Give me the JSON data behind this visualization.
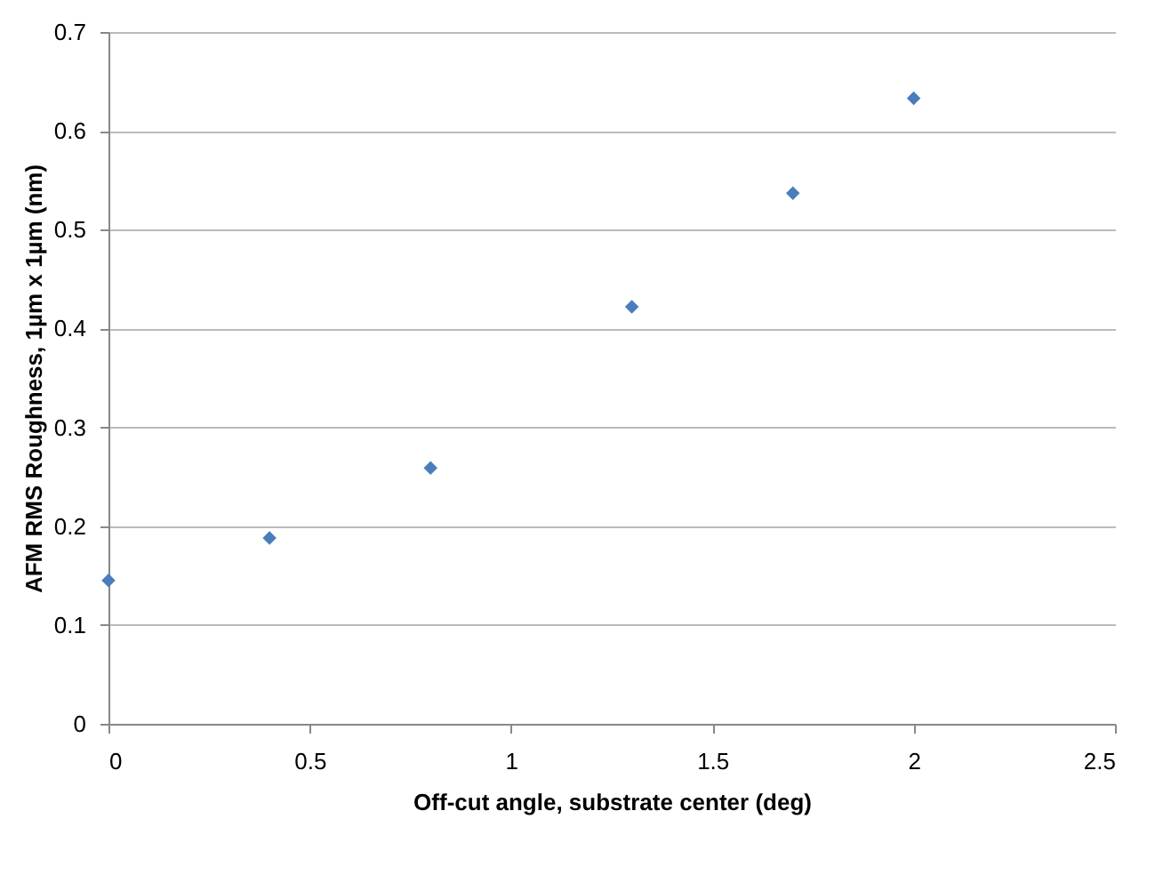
{
  "chart_data": {
    "type": "scatter",
    "xlabel": "Off-cut angle, substrate center (deg)",
    "ylabel": "AFM RMS Roughness, 1µm x 1µm (nm)",
    "x": [
      0,
      0.4,
      0.8,
      1.3,
      1.7,
      2.0
    ],
    "series": [
      {
        "color": "#4a7ebb",
        "values": [
          0.145,
          0.188,
          0.259,
          0.422,
          0.537,
          0.633
        ]
      }
    ],
    "xlim": [
      0,
      2.5
    ],
    "xticks": [
      0,
      0.5,
      1,
      1.5,
      2,
      2.5
    ],
    "ylim": [
      0,
      0.7
    ],
    "yticks": [
      0,
      0.1,
      0.2,
      0.3,
      0.4,
      0.5,
      0.6,
      0.7
    ],
    "grid": "y",
    "marker": "diamond"
  }
}
